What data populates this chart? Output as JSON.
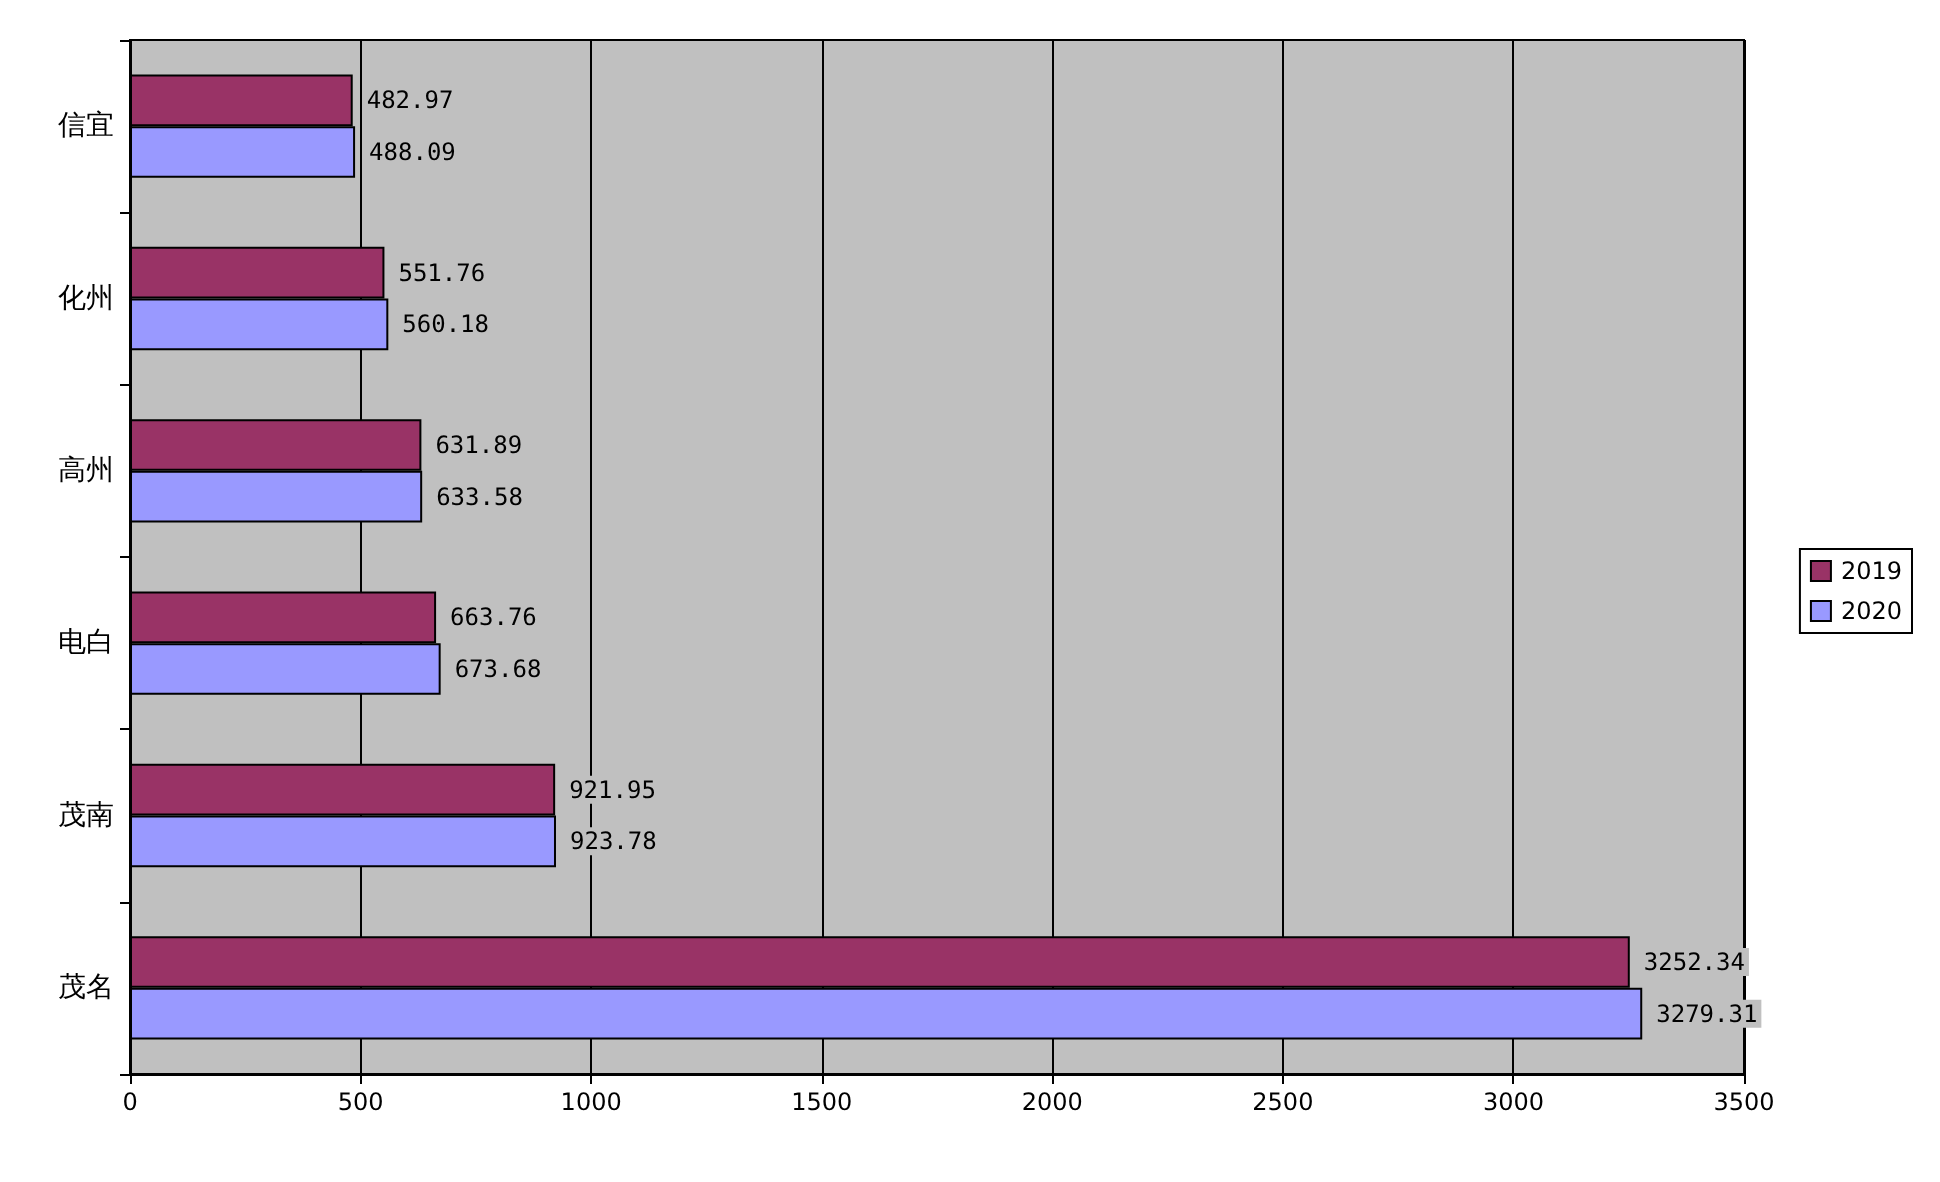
{
  "chart_data": {
    "type": "bar",
    "orientation": "horizontal",
    "categories": [
      "信宜",
      "化州",
      "高州",
      "电白",
      "茂南",
      "茂名"
    ],
    "series": [
      {
        "name": "2019",
        "color": "#993366",
        "values": [
          482.97,
          551.76,
          631.89,
          663.76,
          921.95,
          3252.34
        ]
      },
      {
        "name": "2020",
        "color": "#9999ff",
        "values": [
          488.09,
          560.18,
          633.58,
          673.68,
          923.78,
          3279.31
        ]
      }
    ],
    "xlim": [
      0,
      3500
    ],
    "xticks": [
      0,
      500,
      1000,
      1500,
      2000,
      2500,
      3000,
      3500
    ],
    "grid": "x",
    "legend": "right",
    "data_labels": true
  }
}
